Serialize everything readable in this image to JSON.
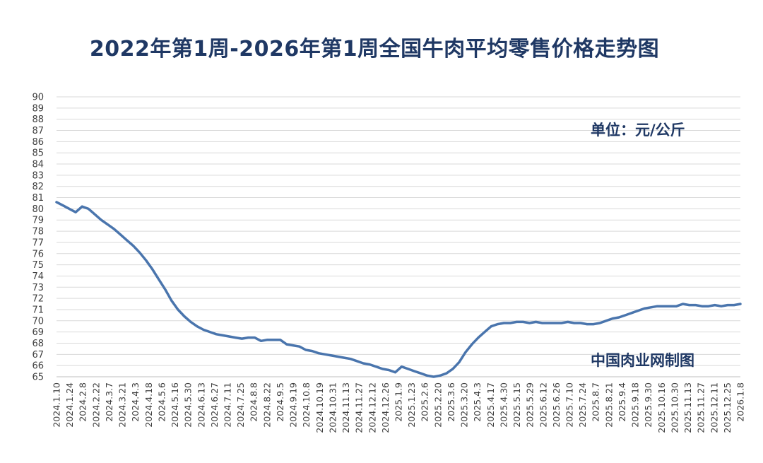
{
  "chart_data": {
    "type": "line",
    "title": "2022年第1周-2026年第1周全国牛肉平均零售价格走势图",
    "unit": "单位：元/公斤",
    "source": "中国肉业网制图",
    "ylim": [
      65,
      90
    ],
    "y_ticks": [
      65,
      66,
      67,
      68,
      69,
      70,
      71,
      72,
      73,
      74,
      75,
      76,
      77,
      78,
      79,
      80,
      81,
      82,
      83,
      84,
      85,
      86,
      87,
      88,
      89,
      90
    ],
    "x_tick_labels": [
      "2024.1.10",
      "2024.1.24",
      "2024.2.8",
      "2024.2.22",
      "2024.3.7",
      "2024.3.21",
      "2024.4.3",
      "2024.4.18",
      "2024.5.6",
      "2024.5.16",
      "2024.5.30",
      "2024.6.13",
      "2024.6.27",
      "2024.7.11",
      "2024.7.25",
      "2024.8.8",
      "2024.8.22",
      "2024.9.5",
      "2024.9.19",
      "2024.10.8",
      "2024.10.19",
      "2024.10.31",
      "2024.11.13",
      "2024.11.27",
      "2024.12.12",
      "2024.12.26",
      "2025.1.9",
      "2025.1.23",
      "2025.2.6",
      "2025.2.20",
      "2025.3.6",
      "2025.3.20",
      "2025.4.3",
      "2025.4.17",
      "2025.4.30",
      "2025.5.15",
      "2025.5.29",
      "2025.6.12",
      "2025.6.26",
      "2025.7.10",
      "2025.7.24",
      "2025.8.7",
      "2025.8.21",
      "2025.9.4",
      "2025.9.18",
      "2025.9.30",
      "2025.10.16",
      "2025.10.30",
      "2025.11.13",
      "2025.11.27",
      "2025.12.11",
      "2025.12.25",
      "2026.1.8"
    ],
    "grid": true,
    "legend": "none",
    "series": [
      {
        "color": "#4a75ad",
        "values": [
          80.6,
          80.3,
          80.0,
          79.7,
          80.2,
          80.0,
          79.5,
          79.0,
          78.6,
          78.2,
          77.7,
          77.2,
          76.7,
          76.1,
          75.4,
          74.6,
          73.7,
          72.8,
          71.8,
          71.0,
          70.4,
          69.9,
          69.5,
          69.2,
          69.0,
          68.8,
          68.7,
          68.6,
          68.5,
          68.4,
          68.5,
          68.5,
          68.2,
          68.3,
          68.3,
          68.3,
          67.9,
          67.8,
          67.7,
          67.4,
          67.3,
          67.1,
          67.0,
          66.9,
          66.8,
          66.7,
          66.6,
          66.4,
          66.2,
          66.1,
          65.9,
          65.7,
          65.6,
          65.4,
          65.9,
          65.7,
          65.5,
          65.3,
          65.1,
          65.0,
          65.1,
          65.3,
          65.7,
          66.3,
          67.2,
          67.9,
          68.5,
          69.0,
          69.5,
          69.7,
          69.8,
          69.8,
          69.9,
          69.9,
          69.8,
          69.9,
          69.8,
          69.8,
          69.8,
          69.8,
          69.9,
          69.8,
          69.8,
          69.7,
          69.7,
          69.8,
          70.0,
          70.2,
          70.3,
          70.5,
          70.7,
          70.9,
          71.1,
          71.2,
          71.3,
          71.3,
          71.3,
          71.3,
          71.5,
          71.4,
          71.4,
          71.3,
          71.3,
          71.4,
          71.3,
          71.4,
          71.4,
          71.5
        ]
      }
    ]
  }
}
